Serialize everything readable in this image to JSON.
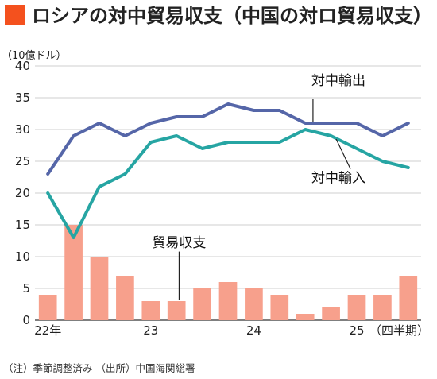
{
  "title": "ロシアの対中貿易収支（中国の対ロ貿易収支）",
  "unit": "（10億ドル）",
  "note": "（注）季節調整済み （出所）中国海関総署",
  "colors": {
    "title_square": "#f4511e",
    "exports": "#5566a8",
    "imports": "#26a5a3",
    "balance": "#f7a08c"
  },
  "chart_data": {
    "type": "bar+line",
    "quarters": [
      "22Q1",
      "22Q2",
      "22Q3",
      "22Q4",
      "23Q1",
      "23Q2",
      "23Q3",
      "23Q4",
      "24Q1",
      "24Q2",
      "24Q3",
      "24Q4",
      "25Q1",
      "25Q2",
      "25Q3"
    ],
    "x_tick_labels": [
      {
        "label": "22年",
        "index": 0
      },
      {
        "label": "23",
        "index": 4
      },
      {
        "label": "24",
        "index": 8
      },
      {
        "label": "25",
        "index": 12
      }
    ],
    "x_unit_label": "（四半期）",
    "ylim": [
      0,
      40
    ],
    "yticks": [
      0,
      5,
      10,
      15,
      20,
      25,
      30,
      35,
      40
    ],
    "grid": true,
    "series": [
      {
        "name": "対中輸出",
        "kind": "line",
        "values": [
          23,
          29,
          31,
          29,
          31,
          32,
          32,
          34,
          33,
          33,
          31,
          31,
          31,
          29,
          31
        ]
      },
      {
        "name": "対中輸入",
        "kind": "line",
        "values": [
          20,
          13,
          21,
          23,
          28,
          29,
          27,
          28,
          28,
          28,
          30,
          29,
          27,
          25,
          24
        ]
      },
      {
        "name": "貿易収支",
        "kind": "bar",
        "values": [
          4,
          15,
          10,
          7,
          3,
          3,
          5,
          6,
          5,
          4,
          1,
          2,
          4,
          4,
          7
        ]
      }
    ]
  }
}
